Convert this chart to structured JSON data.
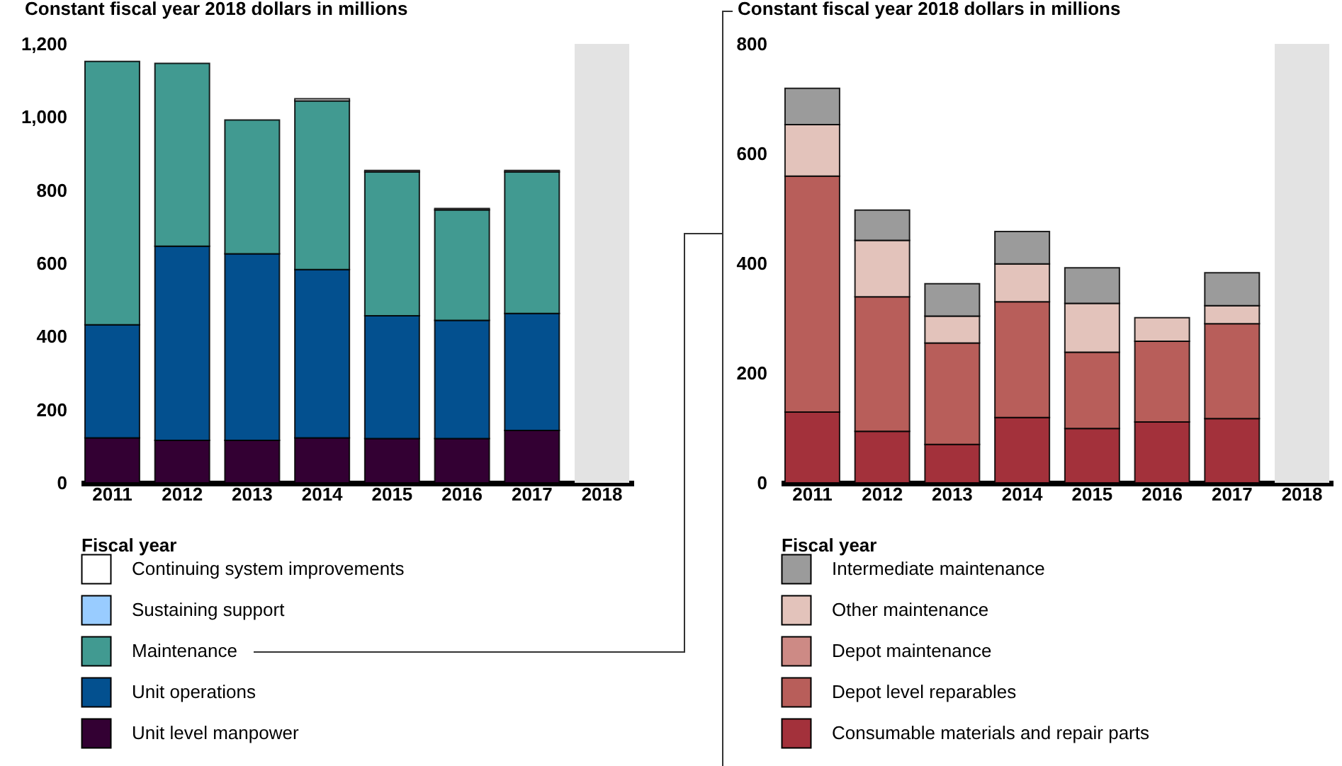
{
  "chart_data": [
    {
      "type": "bar",
      "stacked": true,
      "ylabel": "Constant fiscal year 2018 dollars in millions",
      "xlabel": "Fiscal year",
      "categories": [
        "2011",
        "2012",
        "2013",
        "2014",
        "2015",
        "2016",
        "2017",
        "2018"
      ],
      "ylim": [
        0,
        1200
      ],
      "yticks": [
        0,
        200,
        400,
        600,
        800,
        {
          "value": 1000,
          "label": "1,000"
        },
        {
          "value": 1200,
          "label": "1,200"
        }
      ],
      "legend": "bottom",
      "grid": false,
      "bands": [
        {
          "axis": "x",
          "from": "2018",
          "to": "2018",
          "color": "#e3e3e3"
        }
      ],
      "series": [
        {
          "name": "Unit level manpower",
          "color": "#330033",
          "values": [
            123,
            116,
            116,
            123,
            121,
            121,
            143,
            null
          ]
        },
        {
          "name": "Unit operations",
          "color": "#03508f",
          "values": [
            309,
            531,
            510,
            460,
            336,
            323,
            320,
            null
          ]
        },
        {
          "name": "Maintenance",
          "color": "#419a91",
          "values": [
            720,
            500,
            366,
            461,
            393,
            302,
            387,
            null
          ]
        },
        {
          "name": "Sustaining support",
          "color": "#99ccff",
          "values": [
            0,
            0,
            0,
            0,
            0,
            0,
            0,
            null
          ]
        },
        {
          "name": "Continuing system improvements",
          "color": "#ffffff",
          "values": [
            0,
            0,
            0,
            6,
            4,
            4,
            4,
            null
          ]
        }
      ]
    },
    {
      "type": "bar",
      "stacked": true,
      "ylabel": "Constant fiscal year 2018 dollars in millions",
      "xlabel": "Fiscal year",
      "categories": [
        "2011",
        "2012",
        "2013",
        "2014",
        "2015",
        "2016",
        "2017",
        "2018"
      ],
      "ylim": [
        0,
        800
      ],
      "yticks": [
        0,
        200,
        400,
        600,
        800
      ],
      "legend": "bottom",
      "grid": false,
      "bands": [
        {
          "axis": "x",
          "from": "2018",
          "to": "2018",
          "color": "#e3e3e3"
        }
      ],
      "series": [
        {
          "name": "Consumable materials and repair parts",
          "color": "#a3313b",
          "values": [
            129,
            94,
            70,
            119,
            99,
            111,
            117,
            null
          ]
        },
        {
          "name": "Depot level reparables",
          "color": "#b85e5a",
          "values": [
            430,
            245,
            185,
            211,
            139,
            147,
            173,
            null
          ]
        },
        {
          "name": "Depot maintenance",
          "color": "#cd8a85",
          "values": [
            0,
            0,
            0,
            0,
            0,
            0,
            0,
            null
          ]
        },
        {
          "name": "Other maintenance",
          "color": "#e3c3bb",
          "values": [
            94,
            103,
            49,
            69,
            89,
            43,
            33,
            null
          ]
        },
        {
          "name": "Intermediate maintenance",
          "color": "#9b9b9b",
          "values": [
            66,
            55,
            59,
            59,
            65,
            0,
            60,
            null
          ]
        }
      ]
    }
  ]
}
